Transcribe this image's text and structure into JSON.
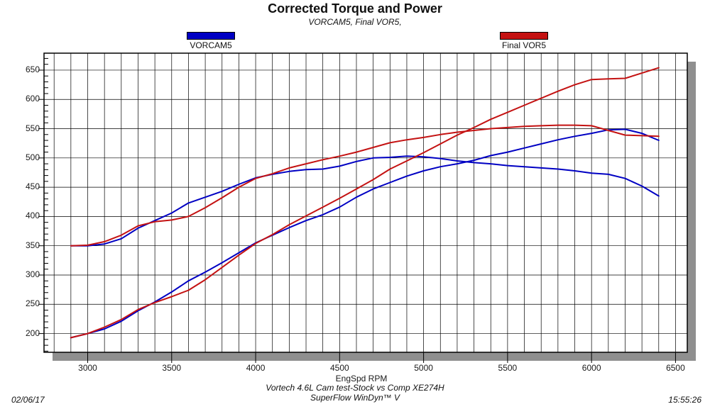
{
  "header": {
    "title": "Corrected Torque and Power",
    "subtitle": "VORCAM5, Final VOR5,"
  },
  "legend": {
    "items": [
      {
        "label": "VORCAM5",
        "color": "#0000c3"
      },
      {
        "label": "Final VOR5",
        "color": "#c41212"
      }
    ]
  },
  "footer": {
    "date": "02/06/17",
    "test_title": "Vortech 4.6L Cam test-Stock vs Comp XE274H",
    "software": "SuperFlow WinDyn™ V",
    "time": "15:55:26"
  },
  "chart_data": {
    "type": "line",
    "title": "Corrected Torque and Power",
    "subtitle": "VORCAM5, Final VOR5,",
    "xlabel": "EngSpd RPM",
    "ylabel": "",
    "xlim": [
      2740,
      6570
    ],
    "ylim": [
      168,
      679
    ],
    "x_ticks": [
      3000,
      3500,
      4000,
      4500,
      5000,
      5500,
      6000,
      6500
    ],
    "y_ticks": [
      200,
      250,
      300,
      350,
      400,
      450,
      500,
      550,
      600,
      650
    ],
    "grid": {
      "x_minor_step": 100,
      "y_major_step": 50,
      "y_minor_tick_step": 10,
      "on": true
    },
    "legend_position": "top",
    "colors": {
      "VORCAM5": "#0000c3",
      "Final VOR5": "#c41212",
      "grid": "#000000",
      "shadow": "#8f8f8f"
    },
    "x": [
      2900,
      3000,
      3100,
      3200,
      3300,
      3400,
      3500,
      3600,
      3700,
      3800,
      3900,
      4000,
      4100,
      4200,
      4300,
      4400,
      4500,
      4600,
      4700,
      4800,
      4900,
      5000,
      5100,
      5200,
      5300,
      5400,
      5500,
      5600,
      5700,
      5800,
      5900,
      6000,
      6100,
      6200,
      6300,
      6400
    ],
    "series": [
      {
        "name": "VORCAM5 Torque",
        "color": "#0000c3",
        "values": [
          350,
          350,
          353,
          362,
          380,
          393,
          406,
          423,
          433,
          443,
          455,
          466,
          472,
          477,
          480,
          481,
          486,
          494,
          500,
          501,
          503,
          502,
          499,
          495,
          492,
          490,
          487,
          485,
          483,
          481,
          478,
          474,
          472,
          465,
          452,
          435
        ]
      },
      {
        "name": "VORCAM5 Power",
        "color": "#0000c3",
        "values": [
          193,
          200,
          208,
          221,
          239,
          254,
          271,
          290,
          305,
          321,
          338,
          355,
          368,
          381,
          393,
          403,
          416,
          433,
          447,
          458,
          469,
          478,
          485,
          490,
          496,
          504,
          510,
          517,
          524,
          531,
          537,
          542,
          548,
          549,
          542,
          530
        ]
      },
      {
        "name": "Final VOR5 Torque",
        "color": "#c41212",
        "values": [
          350,
          351,
          357,
          368,
          384,
          391,
          394,
          400,
          415,
          432,
          450,
          465,
          473,
          483,
          490,
          497,
          503,
          510,
          518,
          526,
          531,
          535,
          540,
          544,
          547,
          550,
          552,
          554,
          555,
          556,
          556,
          555,
          547,
          539,
          538,
          537
        ]
      },
      {
        "name": "Final VOR5 Power",
        "color": "#c41212",
        "values": [
          193,
          200,
          211,
          224,
          241,
          253,
          263,
          274,
          292,
          313,
          334,
          354,
          369,
          386,
          401,
          416,
          431,
          447,
          463,
          481,
          495,
          509,
          524,
          539,
          552,
          566,
          578,
          590,
          602,
          614,
          625,
          634,
          635,
          636,
          645,
          654
        ]
      }
    ]
  }
}
